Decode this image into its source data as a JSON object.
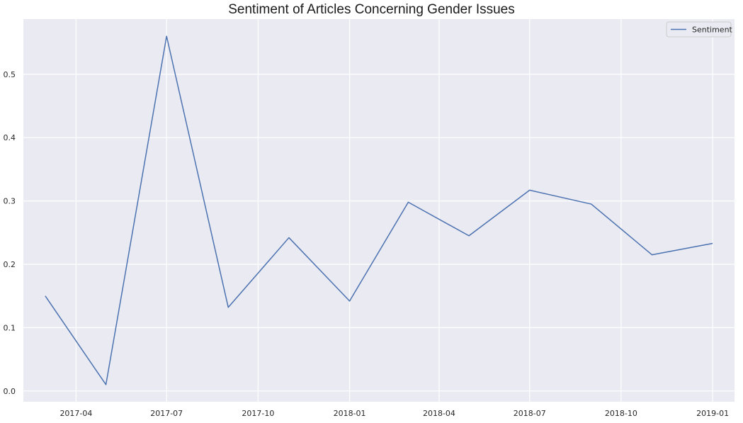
{
  "chart_data": {
    "type": "line",
    "title": "Sentiment of Articles Concerning Gender Issues",
    "xlabel": "",
    "ylabel": "",
    "x_axis_type": "date",
    "xlim": [
      "2017-02-07",
      "2019-01-23"
    ],
    "ylim": [
      -0.017,
      0.587
    ],
    "x_ticks": [
      "2017-04",
      "2017-07",
      "2017-10",
      "2018-01",
      "2018-04",
      "2018-07",
      "2018-10",
      "2019-01"
    ],
    "y_ticks": [
      "0.0",
      "0.1",
      "0.2",
      "0.3",
      "0.4",
      "0.5"
    ],
    "grid": true,
    "legend_position": "top-right",
    "background_color": "#eaeaf2",
    "grid_color": "#ffffff",
    "series": [
      {
        "name": "Sentiment",
        "color": "#4c72b0",
        "x": [
          "2017-03-01",
          "2017-05-01",
          "2017-07-01",
          "2017-09-01",
          "2017-11-01",
          "2018-01-01",
          "2018-03-01",
          "2018-05-01",
          "2018-07-01",
          "2018-09-01",
          "2018-11-01",
          "2019-01-01"
        ],
        "y": [
          0.15,
          0.01,
          0.56,
          0.132,
          0.242,
          0.142,
          0.298,
          0.245,
          0.317,
          0.295,
          0.215,
          0.233
        ]
      }
    ]
  }
}
